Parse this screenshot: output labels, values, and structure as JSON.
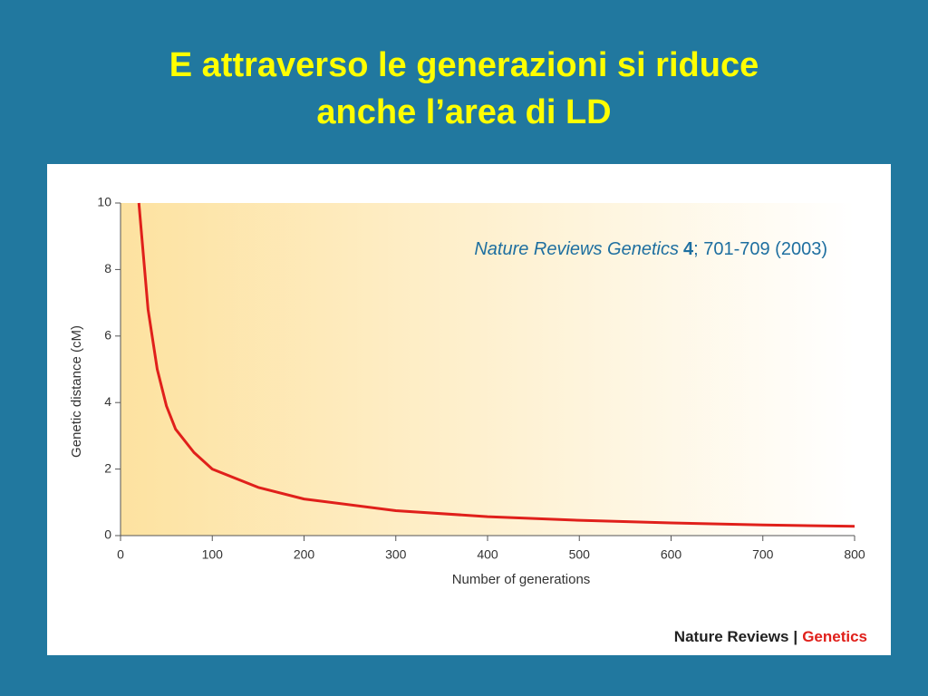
{
  "slide_title": [
    "E attraverso le generazioni si riduce",
    "anche l’area di LD"
  ],
  "citation": {
    "journal": "Nature Reviews Genetics",
    "volume": "4",
    "pages": "; 701-709 (2003)"
  },
  "logo": {
    "left": "Nature Reviews",
    "separator": "|",
    "right": "Genetics"
  },
  "chart_data": {
    "type": "line",
    "x_label": "Number of generations",
    "y_label": "Genetic distance (cM)",
    "x": [
      20,
      30,
      40,
      50,
      60,
      80,
      100,
      150,
      200,
      300,
      400,
      500,
      600,
      700,
      800
    ],
    "series": [
      {
        "color": "#e0201b",
        "values": [
          10,
          6.8,
          5.0,
          3.9,
          3.2,
          2.5,
          2.0,
          1.45,
          1.1,
          0.75,
          0.57,
          0.46,
          0.38,
          0.32,
          0.28
        ]
      }
    ],
    "xlim": [
      0,
      800
    ],
    "xticks": [
      0,
      100,
      200,
      300,
      400,
      500,
      600,
      700,
      800
    ],
    "ylim": [
      0,
      10
    ],
    "yticks": [
      0,
      2,
      4,
      6,
      8,
      10
    ],
    "grid": false
  }
}
